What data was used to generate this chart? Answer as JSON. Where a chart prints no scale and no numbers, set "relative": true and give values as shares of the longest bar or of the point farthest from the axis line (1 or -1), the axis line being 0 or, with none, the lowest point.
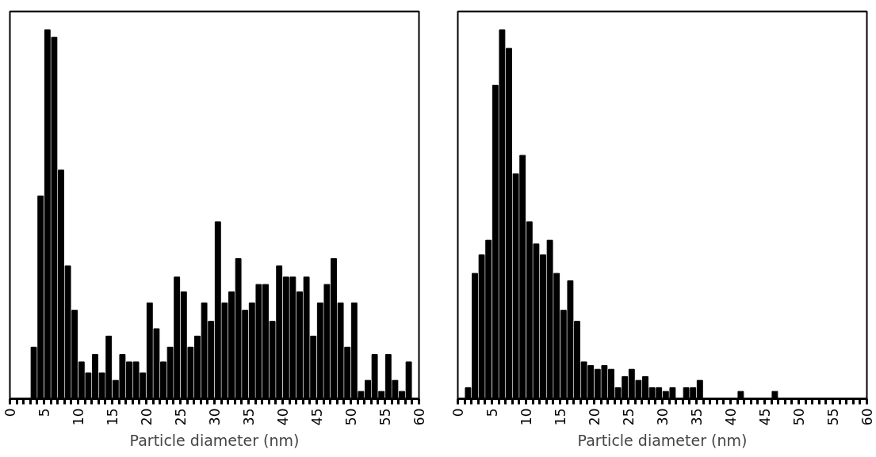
{
  "chart_data": [
    {
      "type": "bar",
      "relative": true,
      "xlabel": "Particle diameter (nm)",
      "color": "#000000",
      "xlim": [
        0,
        60
      ],
      "grid": false,
      "x": [
        0.5,
        1.5,
        2.5,
        3.5,
        4.5,
        5.5,
        6.5,
        7.5,
        8.5,
        9.5,
        10.5,
        11.5,
        12.5,
        13.5,
        14.5,
        15.5,
        16.5,
        17.5,
        18.5,
        19.5,
        20.5,
        21.5,
        22.5,
        23.5,
        24.5,
        25.5,
        26.5,
        27.5,
        28.5,
        29.5,
        30.5,
        31.5,
        32.5,
        33.5,
        34.5,
        35.5,
        36.5,
        37.5,
        38.5,
        39.5,
        40.5,
        41.5,
        42.5,
        43.5,
        44.5,
        45.5,
        46.5,
        47.5,
        48.5,
        49.5,
        50.5,
        51.5,
        52.5,
        53.5,
        54.5,
        55.5,
        56.5,
        57.5,
        58.5,
        59.5
      ],
      "values": [
        0,
        0,
        0,
        0.14,
        0.55,
        1,
        0.98,
        0.62,
        0.36,
        0.24,
        0.1,
        0.07,
        0.12,
        0.07,
        0.17,
        0.05,
        0.12,
        0.1,
        0.1,
        0.07,
        0.26,
        0.19,
        0.1,
        0.14,
        0.33,
        0.29,
        0.14,
        0.17,
        0.26,
        0.21,
        0.48,
        0.26,
        0.29,
        0.38,
        0.24,
        0.26,
        0.31,
        0.31,
        0.21,
        0.36,
        0.33,
        0.33,
        0.29,
        0.33,
        0.17,
        0.26,
        0.31,
        0.38,
        0.26,
        0.14,
        0.26,
        0.02,
        0.05,
        0.12,
        0.02,
        0.12,
        0.05,
        0.02,
        0.1,
        0
      ],
      "xticks": [
        0,
        {
          "value": 1,
          "label": null
        },
        {
          "value": 2,
          "label": null
        },
        {
          "value": 3,
          "label": null
        },
        {
          "value": 4,
          "label": null
        },
        5,
        {
          "value": 6,
          "label": null
        },
        {
          "value": 7,
          "label": null
        },
        {
          "value": 8,
          "label": null
        },
        {
          "value": 9,
          "label": null
        },
        10,
        {
          "value": 11,
          "label": null
        },
        {
          "value": 12,
          "label": null
        },
        {
          "value": 13,
          "label": null
        },
        {
          "value": 14,
          "label": null
        },
        15,
        {
          "value": 16,
          "label": null
        },
        {
          "value": 17,
          "label": null
        },
        {
          "value": 18,
          "label": null
        },
        {
          "value": 19,
          "label": null
        },
        20,
        {
          "value": 21,
          "label": null
        },
        {
          "value": 22,
          "label": null
        },
        {
          "value": 23,
          "label": null
        },
        {
          "value": 24,
          "label": null
        },
        25,
        {
          "value": 26,
          "label": null
        },
        {
          "value": 27,
          "label": null
        },
        {
          "value": 28,
          "label": null
        },
        {
          "value": 29,
          "label": null
        },
        30,
        {
          "value": 31,
          "label": null
        },
        {
          "value": 32,
          "label": null
        },
        {
          "value": 33,
          "label": null
        },
        {
          "value": 34,
          "label": null
        },
        35,
        {
          "value": 36,
          "label": null
        },
        {
          "value": 37,
          "label": null
        },
        {
          "value": 38,
          "label": null
        },
        {
          "value": 39,
          "label": null
        },
        40,
        {
          "value": 41,
          "label": null
        },
        {
          "value": 42,
          "label": null
        },
        {
          "value": 43,
          "label": null
        },
        {
          "value": 44,
          "label": null
        },
        45,
        {
          "value": 46,
          "label": null
        },
        {
          "value": 47,
          "label": null
        },
        {
          "value": 48,
          "label": null
        },
        {
          "value": 49,
          "label": null
        },
        50,
        {
          "value": 51,
          "label": null
        },
        {
          "value": 52,
          "label": null
        },
        {
          "value": 53,
          "label": null
        },
        {
          "value": 54,
          "label": null
        },
        55,
        {
          "value": 56,
          "label": null
        },
        {
          "value": 57,
          "label": null
        },
        {
          "value": 58,
          "label": null
        },
        {
          "value": 59,
          "label": null
        },
        60
      ]
    },
    {
      "type": "bar",
      "relative": true,
      "xlabel": "Particle diameter (nm)",
      "color": "#000000",
      "xlim": [
        0,
        60
      ],
      "grid": false,
      "x": [
        0.5,
        1.5,
        2.5,
        3.5,
        4.5,
        5.5,
        6.5,
        7.5,
        8.5,
        9.5,
        10.5,
        11.5,
        12.5,
        13.5,
        14.5,
        15.5,
        16.5,
        17.5,
        18.5,
        19.5,
        20.5,
        21.5,
        22.5,
        23.5,
        24.5,
        25.5,
        26.5,
        27.5,
        28.5,
        29.5,
        30.5,
        31.5,
        32.5,
        33.5,
        34.5,
        35.5,
        36.5,
        37.5,
        38.5,
        39.5,
        40.5,
        41.5,
        42.5,
        43.5,
        44.5,
        45.5,
        46.5,
        47.5,
        48.5,
        49.5,
        50.5,
        51.5,
        52.5,
        53.5,
        54.5,
        55.5,
        56.5,
        57.5,
        58.5,
        59.5
      ],
      "values": [
        0,
        0.03,
        0.34,
        0.39,
        0.43,
        0.85,
        1,
        0.95,
        0.61,
        0.66,
        0.48,
        0.42,
        0.39,
        0.43,
        0.34,
        0.24,
        0.32,
        0.21,
        0.1,
        0.09,
        0.08,
        0.09,
        0.08,
        0.03,
        0.06,
        0.08,
        0.05,
        0.06,
        0.03,
        0.03,
        0.02,
        0.03,
        0,
        0.03,
        0.03,
        0.05,
        0,
        0,
        0,
        0,
        0,
        0.02,
        0,
        0,
        0,
        0,
        0.02,
        0,
        0,
        0,
        0,
        0,
        0,
        0,
        0,
        0,
        0,
        0,
        0,
        0
      ],
      "xticks": [
        0,
        {
          "value": 1,
          "label": null
        },
        {
          "value": 2,
          "label": null
        },
        {
          "value": 3,
          "label": null
        },
        {
          "value": 4,
          "label": null
        },
        5,
        {
          "value": 6,
          "label": null
        },
        {
          "value": 7,
          "label": null
        },
        {
          "value": 8,
          "label": null
        },
        {
          "value": 9,
          "label": null
        },
        10,
        {
          "value": 11,
          "label": null
        },
        {
          "value": 12,
          "label": null
        },
        {
          "value": 13,
          "label": null
        },
        {
          "value": 14,
          "label": null
        },
        15,
        {
          "value": 16,
          "label": null
        },
        {
          "value": 17,
          "label": null
        },
        {
          "value": 18,
          "label": null
        },
        {
          "value": 19,
          "label": null
        },
        20,
        {
          "value": 21,
          "label": null
        },
        {
          "value": 22,
          "label": null
        },
        {
          "value": 23,
          "label": null
        },
        {
          "value": 24,
          "label": null
        },
        25,
        {
          "value": 26,
          "label": null
        },
        {
          "value": 27,
          "label": null
        },
        {
          "value": 28,
          "label": null
        },
        {
          "value": 29,
          "label": null
        },
        30,
        {
          "value": 31,
          "label": null
        },
        {
          "value": 32,
          "label": null
        },
        {
          "value": 33,
          "label": null
        },
        {
          "value": 34,
          "label": null
        },
        35,
        {
          "value": 36,
          "label": null
        },
        {
          "value": 37,
          "label": null
        },
        {
          "value": 38,
          "label": null
        },
        {
          "value": 39,
          "label": null
        },
        40,
        {
          "value": 41,
          "label": null
        },
        {
          "value": 42,
          "label": null
        },
        {
          "value": 43,
          "label": null
        },
        {
          "value": 44,
          "label": null
        },
        45,
        {
          "value": 46,
          "label": null
        },
        {
          "value": 47,
          "label": null
        },
        {
          "value": 48,
          "label": null
        },
        {
          "value": 49,
          "label": null
        },
        50,
        {
          "value": 51,
          "label": null
        },
        {
          "value": 52,
          "label": null
        },
        {
          "value": 53,
          "label": null
        },
        {
          "value": 54,
          "label": null
        },
        55,
        {
          "value": 56,
          "label": null
        },
        {
          "value": 57,
          "label": null
        },
        {
          "value": 58,
          "label": null
        },
        {
          "value": 59,
          "label": null
        },
        60
      ]
    }
  ]
}
